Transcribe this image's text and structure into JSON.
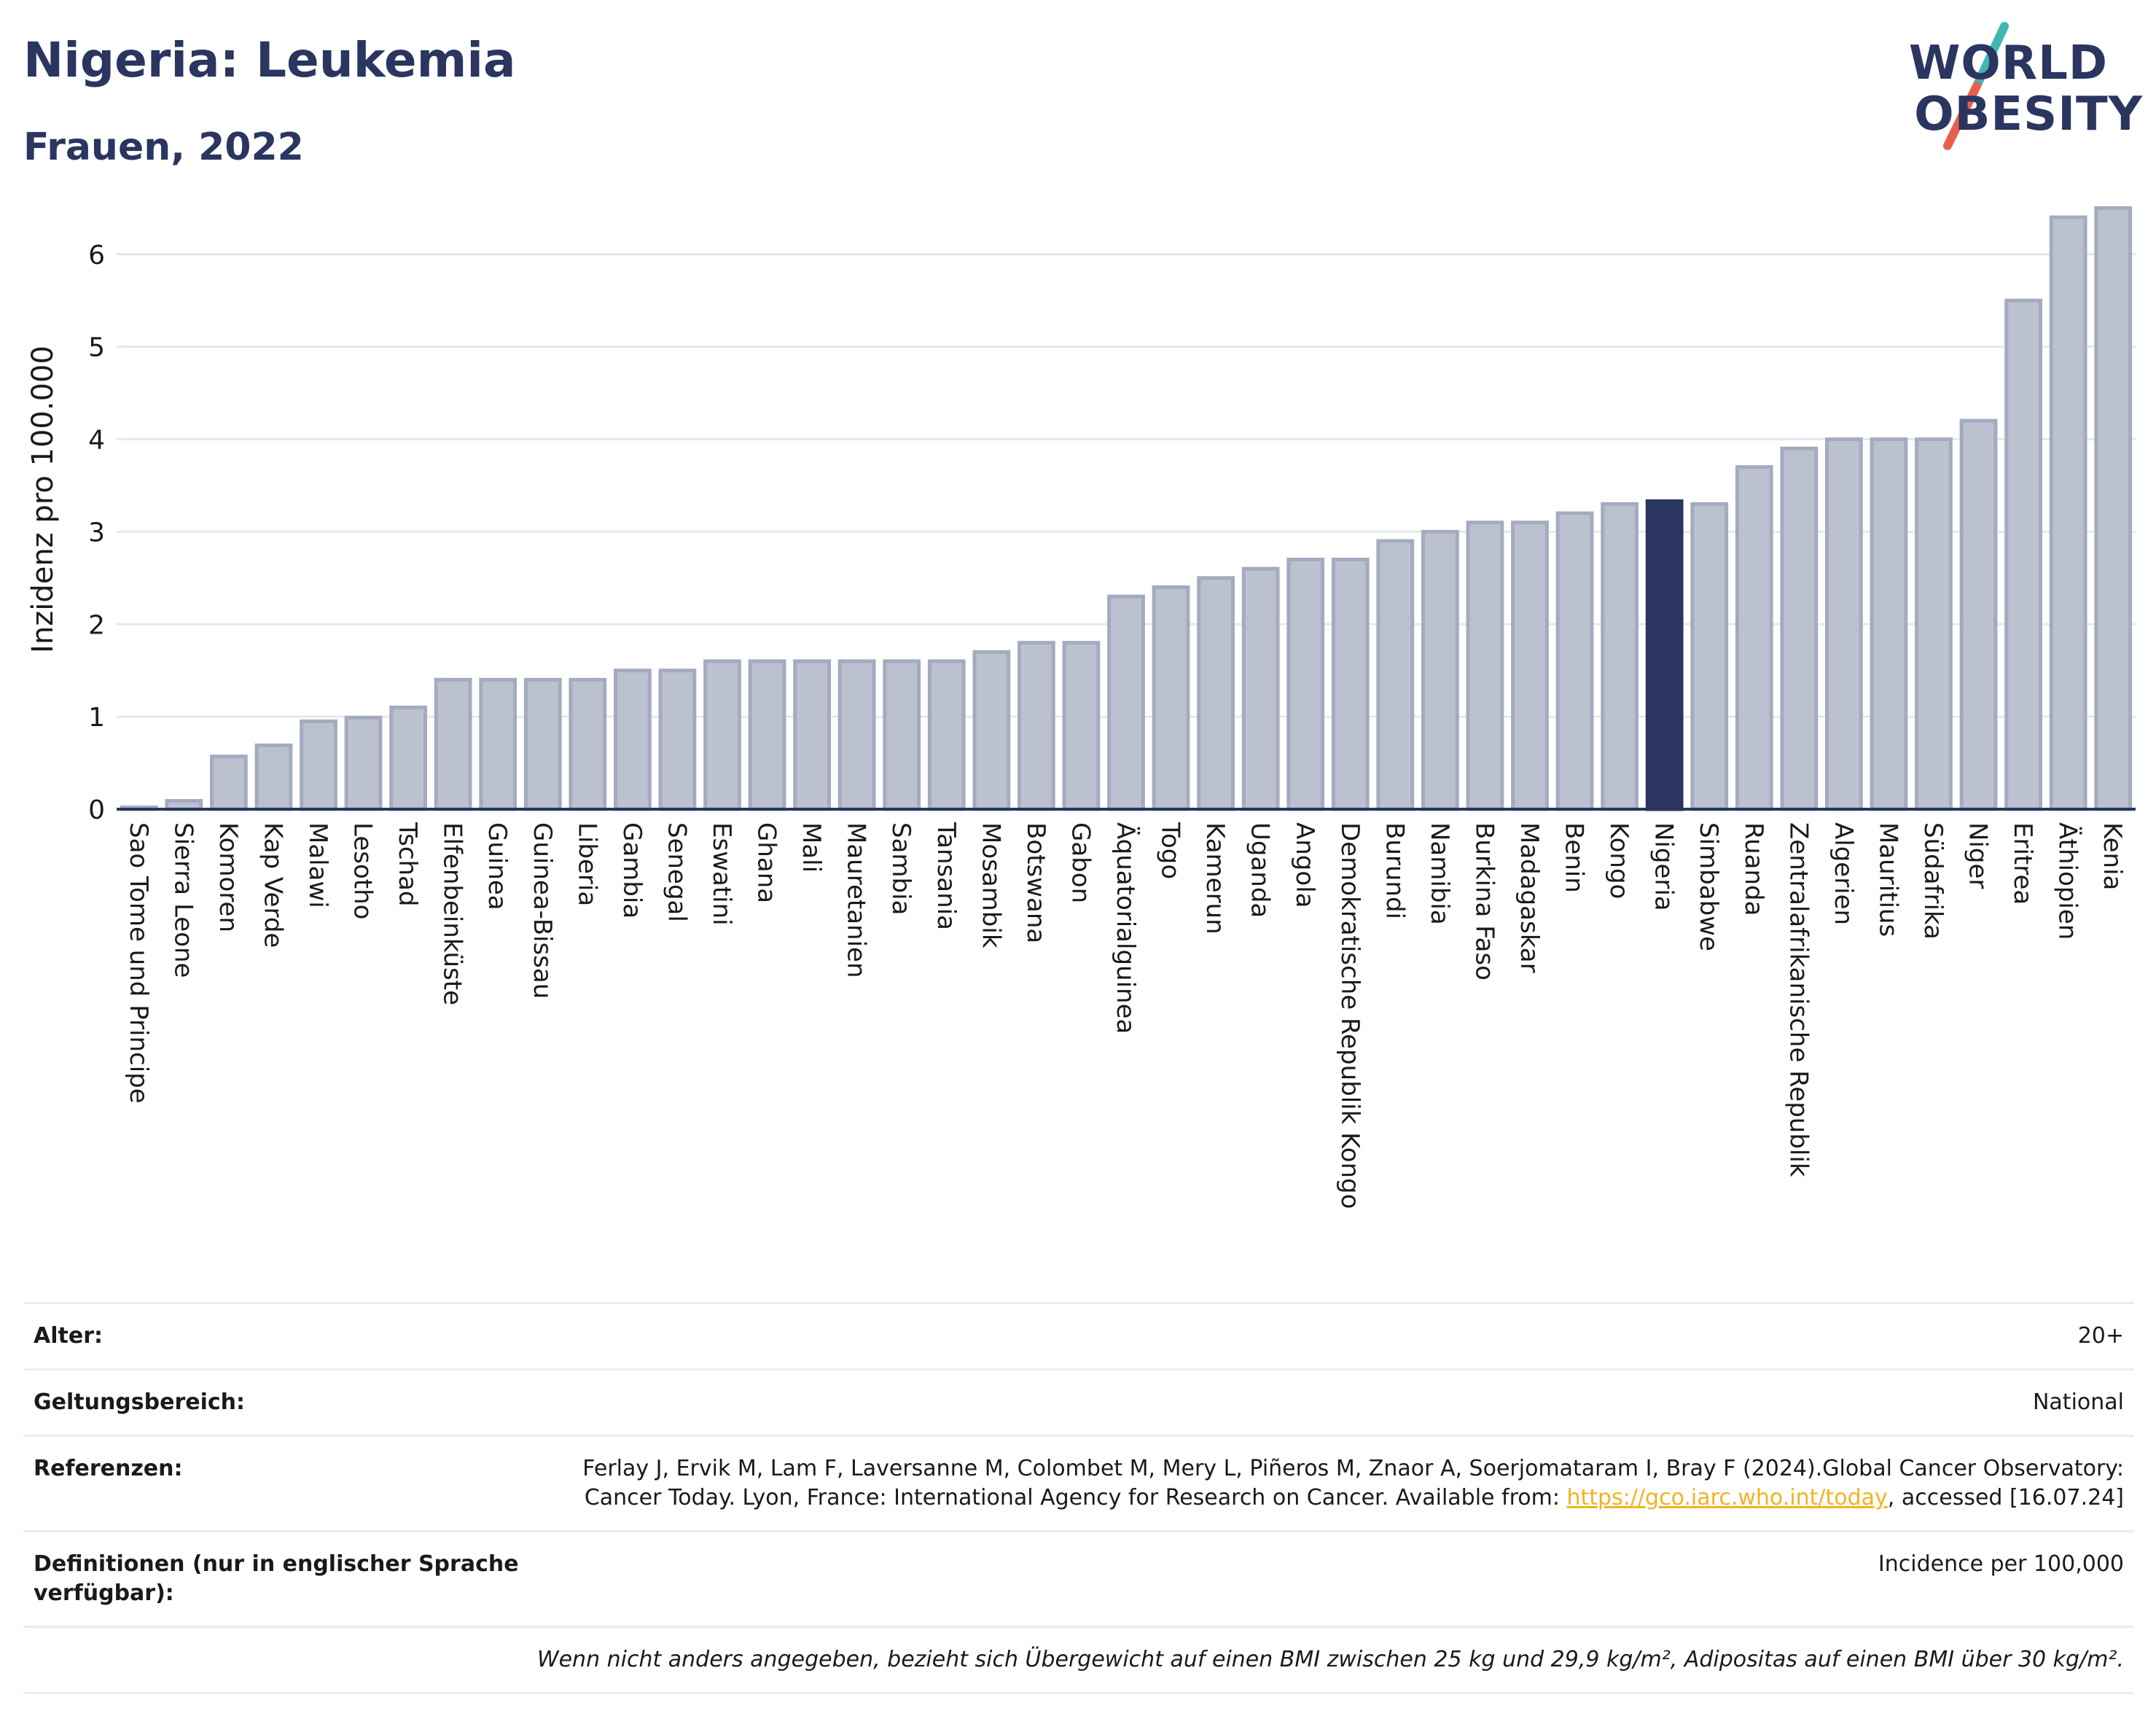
{
  "header": {
    "title": "Nigeria: Leukemia",
    "subtitle": "Frauen, 2022"
  },
  "logo": {
    "line1": "WORLD",
    "line2": "OBESITY",
    "colors": {
      "text": "#2a3560",
      "slash_top": "#3fb6b2",
      "slash_bottom": "#e8604c"
    }
  },
  "chart_data": {
    "type": "bar",
    "ylabel": "Inzidenz pro 100.000",
    "ylim": [
      0,
      6.7
    ],
    "yticks": [
      0,
      1,
      2,
      3,
      4,
      5,
      6
    ],
    "grid": true,
    "highlight": "Nigeria",
    "colors": {
      "bar": "#bcc1d0",
      "bar_border": "#a4abc0",
      "highlight": "#2a3560",
      "grid": "#e6e8ee",
      "axis": "#2a3560"
    },
    "categories": [
      "Sao Tome und Principe",
      "Sierra Leone",
      "Komoren",
      "Kap Verde",
      "Malawi",
      "Lesotho",
      "Tschad",
      "Elfenbeinküste",
      "Guinea",
      "Guinea-Bissau",
      "Liberia",
      "Gambia",
      "Senegal",
      "Eswatini",
      "Ghana",
      "Mali",
      "Mauretanien",
      "Sambia",
      "Tansania",
      "Mosambik",
      "Botswana",
      "Gabon",
      "Äquatorialguinea",
      "Togo",
      "Kamerun",
      "Uganda",
      "Angola",
      "Demokratische Republik Kongo",
      "Burundi",
      "Namibia",
      "Burkina Faso",
      "Madagaskar",
      "Benin",
      "Kongo",
      "Nigeria",
      "Simbabwe",
      "Ruanda",
      "Zentralafrikanische Republik",
      "Algerien",
      "Mauritius",
      "Südafrika",
      "Niger",
      "Eritrea",
      "Äthiopien",
      "Kenia"
    ],
    "values": [
      0.02,
      0.09,
      0.57,
      0.69,
      0.95,
      0.99,
      1.1,
      1.4,
      1.4,
      1.4,
      1.4,
      1.5,
      1.5,
      1.6,
      1.6,
      1.6,
      1.6,
      1.6,
      1.6,
      1.7,
      1.8,
      1.8,
      2.3,
      2.4,
      2.5,
      2.6,
      2.7,
      2.7,
      2.9,
      3.0,
      3.1,
      3.1,
      3.2,
      3.3,
      3.33,
      3.3,
      3.7,
      3.9,
      4.0,
      4.0,
      4.0,
      4.2,
      5.5,
      6.4,
      6.5
    ]
  },
  "info": {
    "age_label": "Alter:",
    "age_value": "20+",
    "scope_label": "Geltungsbereich:",
    "scope_value": "National",
    "ref_label": "Referenzen:",
    "ref_text_1": "Ferlay J, Ervik M, Lam F, Laversanne M, Colombet M, Mery L, Piñeros M, Znaor A, Soerjomataram I, Bray F (2024).Global Cancer Observatory: Cancer Today. Lyon, France: International Agency for Research on Cancer. Available from: ",
    "ref_link": "https://gco.iarc.who.int/today",
    "ref_text_2": ", accessed [16.07.24]",
    "def_label": "Definitionen (nur in englischer Sprache verfügbar):",
    "def_value": "Incidence per 100,000",
    "note": "Wenn nicht anders angegeben, bezieht sich Übergewicht auf einen BMI zwischen 25 kg und 29,9 kg/m², Adipositas auf einen BMI über 30 kg/m²."
  }
}
